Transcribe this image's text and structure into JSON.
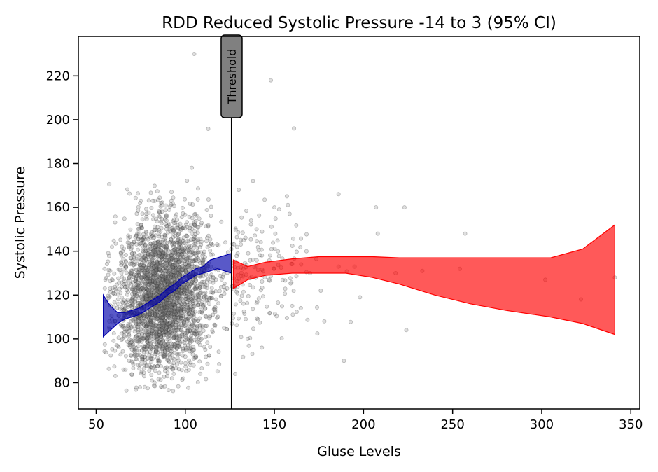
{
  "chart_data": {
    "type": "scatter",
    "title": "RDD Reduced Systolic Pressure -14 to 3 (95% CI)",
    "xlabel": "Gluse Levels",
    "ylabel": "Systolic Pressure",
    "xlim": [
      40,
      355
    ],
    "ylim": [
      68,
      238
    ],
    "xticks": [
      50,
      100,
      150,
      200,
      250,
      300,
      350
    ],
    "yticks": [
      80,
      100,
      120,
      140,
      160,
      180,
      200,
      220
    ],
    "grid": false,
    "threshold": {
      "x": 126,
      "label": "Threshold"
    },
    "scatter": {
      "color": "#808080",
      "approx_points": 3000,
      "cluster": {
        "x_center": 88,
        "x_sd": 13,
        "y_center": 120,
        "y_sd": 17,
        "x_range": [
          54,
          130
        ],
        "y_range": [
          76,
          202
        ]
      },
      "outliers": [
        [
          105,
          230
        ],
        [
          148,
          218
        ],
        [
          161,
          196
        ],
        [
          186,
          166
        ],
        [
          189,
          90
        ],
        [
          207,
          160
        ],
        [
          223,
          160
        ],
        [
          257,
          148
        ],
        [
          302,
          127
        ],
        [
          322,
          118
        ],
        [
          341,
          128
        ],
        [
          254,
          132
        ],
        [
          233,
          131
        ],
        [
          224,
          104
        ],
        [
          198,
          119
        ],
        [
          178,
          108
        ],
        [
          208,
          148
        ],
        [
          165,
          134
        ],
        [
          176,
          122
        ],
        [
          195,
          133
        ],
        [
          218,
          130
        ],
        [
          170,
          130
        ],
        [
          157,
          165
        ],
        [
          150,
          160
        ],
        [
          140,
          150
        ],
        [
          135,
          100
        ],
        [
          128,
          84
        ],
        [
          143,
          96
        ],
        [
          160,
          115
        ],
        [
          152,
          140
        ],
        [
          138,
          172
        ],
        [
          130,
          168
        ],
        [
          147,
          127
        ],
        [
          168,
          140
        ],
        [
          186,
          133
        ]
      ]
    },
    "series": [
      {
        "color": "#0000aa",
        "x": [
          54,
          58,
          62,
          66,
          70,
          74,
          78,
          82,
          86,
          90,
          94,
          98,
          102,
          106,
          110,
          114,
          118,
          122,
          126
        ],
        "lower": [
          101,
          104,
          107,
          109,
          110,
          111,
          113,
          115,
          117,
          120,
          122,
          125,
          127,
          129,
          130,
          131,
          132,
          131,
          130
        ],
        "upper": [
          120,
          115,
          112,
          112,
          113,
          114,
          116,
          118,
          120,
          123,
          125,
          128,
          130,
          132,
          133,
          136,
          137,
          138,
          139
        ]
      },
      {
        "color": "#ff0000",
        "x": [
          127,
          135,
          145,
          160,
          175,
          190,
          205,
          220,
          240,
          260,
          280,
          305,
          323,
          341
        ],
        "lower": [
          123,
          127,
          129,
          130,
          130,
          130,
          128,
          125,
          120,
          116,
          113,
          110,
          107,
          102
        ],
        "upper": [
          136,
          133,
          135,
          136.5,
          137.5,
          137.5,
          137.5,
          137,
          137,
          137,
          137,
          137,
          141,
          152
        ]
      }
    ]
  }
}
